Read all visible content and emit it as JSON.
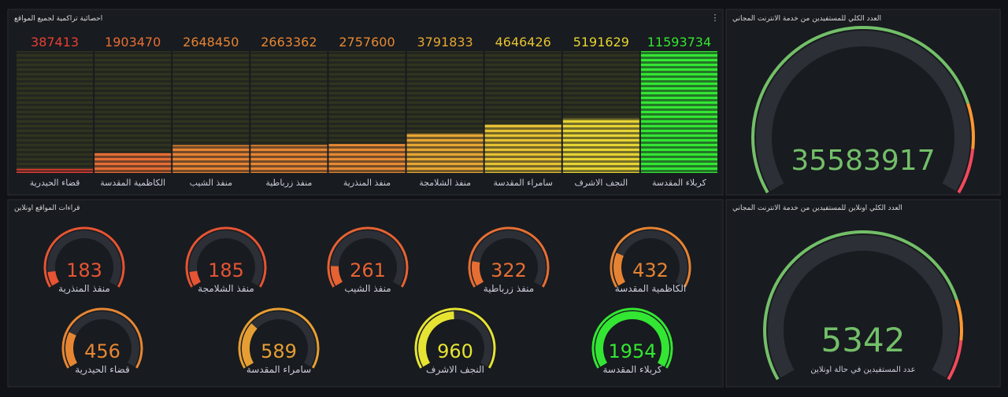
{
  "bar_panel": {
    "title": "احصائية تراكمية لجميع المواقع",
    "categories": [
      "قضاء الحيدرية",
      "الكاظمية المقدسة",
      "منفذ الشيب",
      "منفذ زرباطية",
      "منفذ المنذرية",
      "منفذ الشلامجة",
      "سامراء المقدسة",
      "النجف الاشرف",
      "كربلاء المقدسة"
    ],
    "values": [
      387413,
      1903470,
      2648450,
      2663362,
      2757600,
      3791833,
      4646426,
      5191629,
      11593734
    ]
  },
  "total_panel": {
    "title": "العدد الكلي للمستفيدين من خدمة الانترنت المجاني",
    "value": 35583917
  },
  "sites_panel": {
    "title": "قراءات المواقع اونلاين",
    "gauges": [
      {
        "label": "منفذ المنذرية",
        "value": 183
      },
      {
        "label": "منفذ الشلامجة",
        "value": 185
      },
      {
        "label": "منفذ الشيب",
        "value": 261
      },
      {
        "label": "منفذ زرباطية",
        "value": 322
      },
      {
        "label": "الكاظمية المقدسة",
        "value": 432
      },
      {
        "label": "قضاء الحيدرية",
        "value": 456
      },
      {
        "label": "سامراء المقدسة",
        "value": 589
      },
      {
        "label": "النجف الاشرف",
        "value": 960
      },
      {
        "label": "كربلاء المقدسة",
        "value": 1954
      }
    ]
  },
  "online_panel": {
    "title": "العدد الكلي اونلاين للمستفيدين من خدمة الانترنت المجاني",
    "value": 5342,
    "label": "عدد المستفيدين في حالة اونلاين"
  }
}
